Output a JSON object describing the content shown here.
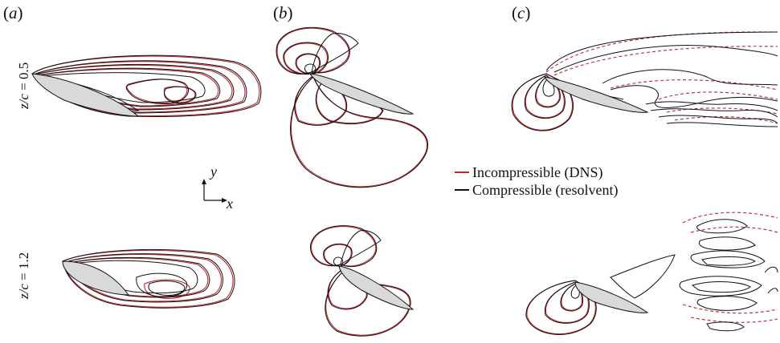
{
  "panels": [
    {
      "label": "a"
    },
    {
      "label": "b"
    },
    {
      "label": "c"
    }
  ],
  "rows": [
    {
      "var": "z/c",
      "value": "0.5"
    },
    {
      "var": "z/c",
      "value": "1.2"
    }
  ],
  "axes": {
    "x": "x",
    "y": "y"
  },
  "legend": [
    {
      "label": "Incompressible (DNS)",
      "color": "#c0252c"
    },
    {
      "label": "Compressible (resolvent)",
      "color": "#111111"
    }
  ],
  "colors": {
    "dns": "#c0252c",
    "resolvent": "#111111",
    "airfoil_fill": "#d9d9d9"
  }
}
